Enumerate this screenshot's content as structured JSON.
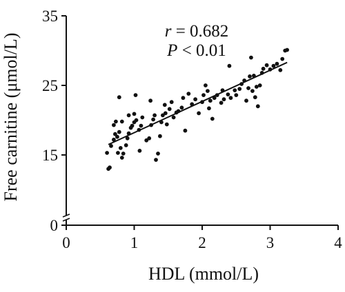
{
  "chart_data": {
    "type": "scatter",
    "title": "",
    "xlabel": "HDL (mmol/L)",
    "ylabel": "Free carnitine (μmol/L)",
    "xlim": [
      0,
      4
    ],
    "ylim": [
      0,
      35
    ],
    "y_axis_break": true,
    "x_ticks": [
      0,
      1,
      2,
      3,
      4
    ],
    "y_ticks": [
      0,
      15,
      25,
      35
    ],
    "annotations": {
      "r_symbol": "r",
      "r_value": " = 0.682",
      "p_symbol": "P",
      "p_value": " < 0.01"
    },
    "trendline": {
      "x": [
        0.62,
        3.25
      ],
      "y": [
        16.5,
        28.3
      ]
    },
    "points": [
      [
        0.62,
        13.0
      ],
      [
        0.64,
        13.2
      ],
      [
        0.6,
        15.3
      ],
      [
        0.66,
        16.3
      ],
      [
        0.7,
        17.2
      ],
      [
        0.72,
        18.0
      ],
      [
        0.7,
        19.3
      ],
      [
        0.73,
        19.8
      ],
      [
        0.76,
        15.3
      ],
      [
        0.8,
        16.0
      ],
      [
        0.82,
        14.6
      ],
      [
        0.84,
        15.2
      ],
      [
        0.88,
        16.4
      ],
      [
        0.75,
        17.6
      ],
      [
        0.78,
        18.3
      ],
      [
        0.82,
        19.8
      ],
      [
        0.78,
        23.3
      ],
      [
        0.9,
        17.4
      ],
      [
        0.92,
        18.1
      ],
      [
        0.95,
        18.9
      ],
      [
        0.97,
        19.2
      ],
      [
        1.0,
        19.7
      ],
      [
        0.92,
        20.7
      ],
      [
        1.0,
        20.9
      ],
      [
        1.03,
        20.0
      ],
      [
        1.07,
        18.6
      ],
      [
        1.1,
        19.2
      ],
      [
        1.12,
        20.4
      ],
      [
        1.02,
        23.6
      ],
      [
        1.08,
        15.6
      ],
      [
        1.18,
        17.1
      ],
      [
        1.22,
        17.4
      ],
      [
        1.25,
        19.3
      ],
      [
        1.28,
        20.1
      ],
      [
        1.3,
        20.7
      ],
      [
        1.24,
        22.8
      ],
      [
        1.32,
        14.3
      ],
      [
        1.35,
        15.2
      ],
      [
        1.38,
        17.7
      ],
      [
        1.4,
        19.7
      ],
      [
        1.42,
        20.7
      ],
      [
        1.46,
        21.0
      ],
      [
        1.48,
        19.4
      ],
      [
        1.45,
        22.2
      ],
      [
        1.52,
        21.6
      ],
      [
        1.55,
        22.6
      ],
      [
        1.58,
        20.4
      ],
      [
        1.62,
        21.1
      ],
      [
        1.65,
        21.3
      ],
      [
        1.7,
        21.8
      ],
      [
        1.72,
        23.2
      ],
      [
        1.75,
        18.5
      ],
      [
        1.8,
        23.8
      ],
      [
        1.85,
        22.3
      ],
      [
        1.9,
        23.0
      ],
      [
        1.95,
        21.0
      ],
      [
        2.0,
        22.6
      ],
      [
        2.02,
        23.6
      ],
      [
        2.05,
        25.0
      ],
      [
        2.08,
        24.2
      ],
      [
        2.1,
        21.7
      ],
      [
        2.12,
        22.8
      ],
      [
        2.15,
        20.2
      ],
      [
        2.18,
        23.2
      ],
      [
        2.22,
        23.6
      ],
      [
        2.28,
        22.5
      ],
      [
        2.3,
        24.3
      ],
      [
        2.32,
        23.0
      ],
      [
        2.38,
        23.7
      ],
      [
        2.4,
        27.8
      ],
      [
        2.42,
        23.2
      ],
      [
        2.48,
        24.3
      ],
      [
        2.5,
        23.6
      ],
      [
        2.55,
        24.5
      ],
      [
        2.58,
        25.2
      ],
      [
        2.62,
        25.7
      ],
      [
        2.65,
        22.8
      ],
      [
        2.68,
        24.6
      ],
      [
        2.7,
        26.3
      ],
      [
        2.72,
        29.0
      ],
      [
        2.74,
        24.2
      ],
      [
        2.76,
        26.4
      ],
      [
        2.78,
        23.3
      ],
      [
        2.8,
        24.8
      ],
      [
        2.82,
        22.0
      ],
      [
        2.85,
        25.0
      ],
      [
        2.88,
        26.8
      ],
      [
        2.9,
        27.4
      ],
      [
        2.95,
        27.9
      ],
      [
        3.0,
        27.3
      ],
      [
        3.05,
        27.8
      ],
      [
        3.1,
        28.1
      ],
      [
        3.15,
        27.2
      ],
      [
        3.18,
        28.8
      ],
      [
        3.22,
        30.0
      ],
      [
        3.25,
        30.1
      ]
    ]
  }
}
